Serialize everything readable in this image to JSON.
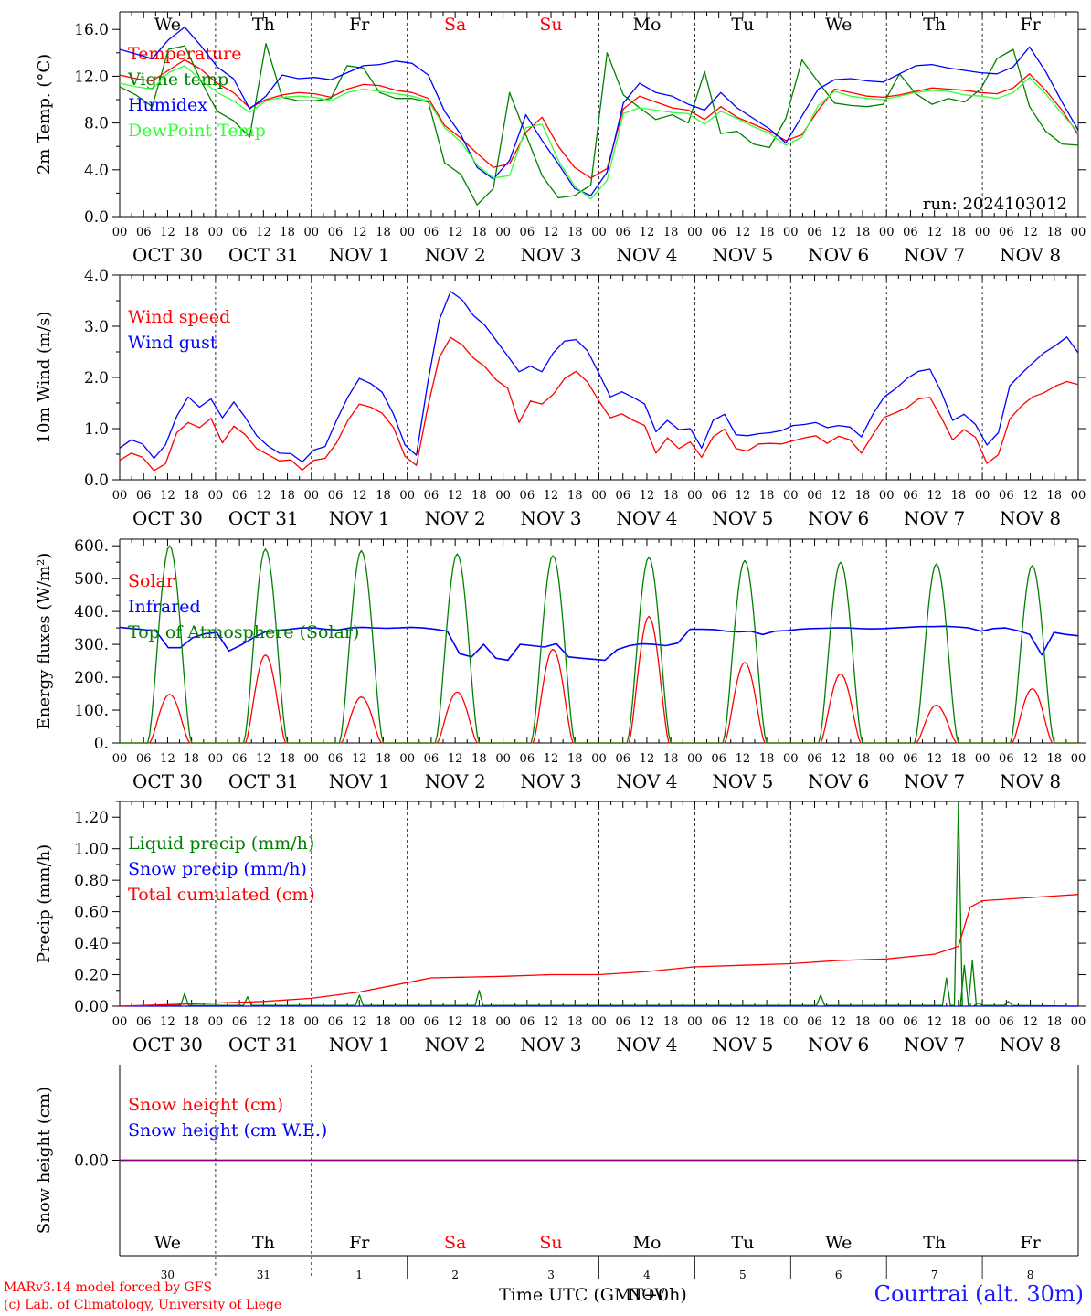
{
  "chart_data": {
    "type": "line",
    "run_label": "run: 2024103012",
    "weekday_labels": [
      {
        "text": "We",
        "color": "#000000"
      },
      {
        "text": "Th",
        "color": "#000000"
      },
      {
        "text": "Fr",
        "color": "#000000"
      },
      {
        "text": "Sa",
        "color": "#ff0000"
      },
      {
        "text": "Su",
        "color": "#ff0000"
      },
      {
        "text": "Mo",
        "color": "#000000"
      },
      {
        "text": "Tu",
        "color": "#000000"
      },
      {
        "text": "We",
        "color": "#000000"
      },
      {
        "text": "Th",
        "color": "#000000"
      },
      {
        "text": "Fr",
        "color": "#000000"
      }
    ],
    "hour_ticks": [
      "00",
      "06",
      "12",
      "18"
    ],
    "date_labels": [
      "OCT 30",
      "OCT 31",
      "NOV 1",
      "NOV 2",
      "NOV 3",
      "NOV 4",
      "NOV 5",
      "NOV 6",
      "NOV 7",
      "NOV 8"
    ],
    "bottom_day_numbers": [
      "30",
      "31",
      "1",
      "2",
      "3",
      "4",
      "5",
      "6",
      "7",
      "8"
    ],
    "bottom_month": "NOV",
    "time_axis_label": "Time UTC (GMT+0h)",
    "panels": [
      {
        "ylabel": "2m Temp. (°C)",
        "ylim": [
          0,
          17.5
        ],
        "yticks": [
          0,
          4,
          8,
          12,
          16
        ],
        "tick_labels": [
          "0.0",
          "4.0",
          "8.0",
          "12.0",
          "16.0"
        ],
        "series": [
          {
            "name": "Temperature",
            "color": "#ff0000",
            "values": [
              12.1,
              11.8,
              11.6,
              12.5,
              13.4,
              12.6,
              11.4,
              10.6,
              9.3,
              10.0,
              10.4,
              10.6,
              10.5,
              10.2,
              10.9,
              11.3,
              11.2,
              10.8,
              10.6,
              10.1,
              7.8,
              6.7,
              5.4,
              4.2,
              4.5,
              7.2,
              8.5,
              6.0,
              4.2,
              3.3,
              4.1,
              9.2,
              10.3,
              9.8,
              9.3,
              9.1,
              8.3,
              9.4,
              8.5,
              7.9,
              7.3,
              6.5,
              7.0,
              9.1,
              10.9,
              10.6,
              10.3,
              10.2,
              10.4,
              10.7,
              11.0,
              10.9,
              10.8,
              10.6,
              10.5,
              11.0,
              12.2,
              10.8,
              9.1,
              7.0
            ]
          },
          {
            "name": "Vigne temp",
            "color": "#008000",
            "values": [
              11.1,
              10.4,
              9.4,
              14.3,
              14.6,
              11.6,
              9.0,
              8.2,
              6.8,
              14.8,
              10.2,
              9.9,
              9.9,
              10.1,
              12.9,
              12.7,
              10.6,
              10.1,
              10.1,
              9.8,
              4.6,
              3.6,
              1.0,
              2.4,
              10.6,
              7.0,
              3.5,
              1.6,
              1.8,
              2.7,
              14.0,
              10.4,
              9.3,
              8.3,
              8.7,
              8.0,
              12.4,
              7.1,
              7.3,
              6.2,
              5.9,
              8.4,
              13.4,
              11.5,
              9.7,
              9.5,
              9.4,
              9.6,
              12.2,
              10.5,
              9.6,
              10.1,
              9.8,
              10.9,
              13.5,
              14.3,
              9.4,
              7.3,
              6.2,
              6.1
            ]
          },
          {
            "name": "Humidex",
            "color": "#0000ff",
            "values": [
              14.3,
              13.9,
              13.5,
              15.1,
              16.2,
              14.6,
              12.8,
              11.8,
              9.2,
              10.3,
              12.1,
              11.8,
              11.9,
              11.7,
              12.3,
              12.9,
              13.0,
              13.3,
              13.1,
              12.1,
              9.0,
              7.0,
              4.2,
              3.2,
              4.8,
              8.7,
              6.5,
              4.5,
              2.4,
              1.8,
              3.8,
              9.7,
              11.4,
              10.6,
              10.3,
              9.6,
              9.1,
              10.6,
              9.3,
              8.4,
              7.5,
              6.3,
              8.6,
              10.9,
              11.7,
              11.8,
              11.6,
              11.5,
              12.2,
              12.9,
              13.0,
              12.7,
              12.5,
              12.3,
              12.2,
              12.8,
              14.5,
              12.4,
              9.8,
              7.4
            ]
          },
          {
            "name": "DewPoint Temp",
            "color": "#33ff33",
            "values": [
              11.4,
              11.1,
              10.9,
              12.3,
              12.9,
              11.7,
              10.6,
              9.9,
              8.9,
              9.9,
              10.2,
              10.3,
              10.2,
              9.9,
              10.6,
              10.9,
              10.7,
              10.5,
              10.3,
              9.9,
              7.6,
              6.4,
              4.4,
              3.3,
              3.5,
              7.6,
              7.9,
              4.8,
              2.6,
              1.5,
              3.1,
              8.8,
              9.3,
              9.1,
              8.9,
              8.8,
              7.9,
              9.0,
              8.4,
              7.7,
              7.1,
              6.1,
              6.8,
              9.5,
              10.7,
              10.3,
              10.1,
              10.0,
              10.3,
              10.6,
              10.8,
              10.7,
              10.4,
              10.3,
              10.1,
              10.6,
              11.9,
              10.5,
              8.8,
              7.2
            ]
          }
        ]
      },
      {
        "ylabel": "10m Wind (m/s)",
        "ylim": [
          0,
          4
        ],
        "yticks": [
          0,
          1,
          2,
          3,
          4
        ],
        "tick_labels": [
          "0.0",
          "1.0",
          "2.0",
          "3.0",
          "4.0"
        ],
        "series": [
          {
            "name": "Wind speed",
            "color": "#ff0000",
            "values": [
              0.38,
              0.52,
              0.44,
              0.18,
              0.31,
              0.92,
              1.12,
              1.02,
              1.2,
              0.72,
              1.05,
              0.88,
              0.61,
              0.49,
              0.37,
              0.39,
              0.19,
              0.38,
              0.42,
              0.72,
              1.16,
              1.48,
              1.42,
              1.3,
              1.02,
              0.46,
              0.28,
              1.42,
              2.39,
              2.78,
              2.64,
              2.38,
              2.21,
              1.95,
              1.79,
              1.12,
              1.54,
              1.48,
              1.67,
              1.98,
              2.12,
              1.91,
              1.54,
              1.21,
              1.29,
              1.16,
              1.06,
              0.52,
              0.82,
              0.61,
              0.74,
              0.44,
              0.84,
              0.99,
              0.61,
              0.56,
              0.7,
              0.71,
              0.7,
              0.76,
              0.82,
              0.86,
              0.71,
              0.85,
              0.78,
              0.52,
              0.88,
              1.22,
              1.31,
              1.41,
              1.58,
              1.61,
              1.22,
              0.78,
              0.98,
              0.83,
              0.32,
              0.49,
              1.19,
              1.44,
              1.62,
              1.7,
              1.83,
              1.92,
              1.86
            ]
          },
          {
            "name": "Wind gust",
            "color": "#0000ff",
            "values": [
              0.62,
              0.78,
              0.7,
              0.42,
              0.68,
              1.24,
              1.62,
              1.42,
              1.58,
              1.21,
              1.52,
              1.22,
              0.86,
              0.66,
              0.52,
              0.51,
              0.35,
              0.58,
              0.65,
              1.16,
              1.62,
              1.98,
              1.88,
              1.71,
              1.28,
              0.68,
              0.48,
              1.9,
              3.12,
              3.68,
              3.52,
              3.21,
              3.02,
              2.72,
              2.42,
              2.11,
              2.22,
              2.11,
              2.48,
              2.71,
              2.74,
              2.52,
              2.08,
              1.62,
              1.72,
              1.61,
              1.48,
              0.94,
              1.16,
              0.98,
              1.0,
              0.62,
              1.16,
              1.28,
              0.88,
              0.86,
              0.9,
              0.92,
              0.96,
              1.06,
              1.08,
              1.12,
              1.02,
              1.06,
              1.03,
              0.84,
              1.28,
              1.62,
              1.78,
              1.98,
              2.12,
              2.16,
              1.72,
              1.16,
              1.28,
              1.08,
              0.68,
              0.92,
              1.84,
              2.07,
              2.28,
              2.48,
              2.62,
              2.79,
              2.48
            ]
          }
        ]
      },
      {
        "ylabel": "Energy fluxes (W/m²)",
        "ylim": [
          0,
          620
        ],
        "yticks": [
          0,
          100,
          200,
          300,
          400,
          500,
          600
        ],
        "tick_labels": [
          "0.",
          "100.",
          "200.",
          "300.",
          "400.",
          "500.",
          "600."
        ],
        "series": [
          {
            "name": "Solar",
            "color": "#ff0000",
            "diurnal_peaks": [
              148,
              268,
              140,
              155,
              285,
              385,
              245,
              210,
              115,
              165
            ]
          },
          {
            "name": "Infrared",
            "color": "#0000ff",
            "values": [
              352,
              348,
              345,
              340,
              290,
              290,
              320,
              332,
              336,
              280,
              298,
              320,
              338,
              342,
              346,
              350,
              350,
              346,
              344,
              350,
              352,
              350,
              349,
              350,
              352,
              350,
              346,
              340,
              272,
              262,
              300,
              258,
              252,
              300,
              296,
              292,
              302,
              262,
              258,
              255,
              252,
              284,
              296,
              302,
              300,
              296,
              304,
              346,
              346,
              345,
              340,
              338,
              340,
              330,
              340,
              342,
              346,
              348,
              349,
              350,
              350,
              348,
              347,
              348,
              350,
              352,
              354,
              354,
              355,
              353,
              350,
              340,
              348,
              350,
              342,
              330,
              268,
              336,
              330,
              326
            ]
          },
          {
            "name": "Top of Atmosphere (Solar)",
            "color": "#008000",
            "diurnal_peaks": [
              600,
              590,
              585,
              575,
              570,
              565,
              555,
              550,
              545,
              540
            ]
          }
        ]
      },
      {
        "ylabel": "Precip (mm/h)",
        "ylim": [
          0,
          1.3
        ],
        "yticks": [
          0,
          0.2,
          0.4,
          0.6,
          0.8,
          1.0,
          1.2
        ],
        "tick_labels": [
          "0.00",
          "0.20",
          "0.40",
          "0.60",
          "0.80",
          "1.00",
          "1.20"
        ],
        "series": [
          {
            "name": "Liquid precip (mm/h)",
            "color": "#008000",
            "spikes": [
              [
                6.5,
                0.08
              ],
              [
                12.8,
                0.06
              ],
              [
                24.0,
                0.07
              ],
              [
                36.0,
                0.1
              ],
              [
                70.2,
                0.07
              ],
              [
                86.0,
                0.02
              ],
              [
                82.8,
                0.18
              ],
              [
                84.0,
                1.28
              ],
              [
                85.4,
                0.29
              ],
              [
                84.6,
                0.26
              ],
              [
                89.0,
                0.03
              ]
            ]
          },
          {
            "name": "Snow precip (mm/h)",
            "color": "#0000ff",
            "values": [
              0,
              0
            ]
          },
          {
            "name": "Total cumulated (cm)",
            "color": "#ff0000",
            "points": [
              [
                0,
                0.0
              ],
              [
                12,
                0.01
              ],
              [
                24,
                0.02
              ],
              [
                36,
                0.03
              ],
              [
                48,
                0.05
              ],
              [
                60,
                0.09
              ],
              [
                72,
                0.15
              ],
              [
                78,
                0.18
              ],
              [
                96,
                0.19
              ],
              [
                108,
                0.2
              ],
              [
                120,
                0.2
              ],
              [
                132,
                0.22
              ],
              [
                144,
                0.25
              ],
              [
                156,
                0.26
              ],
              [
                168,
                0.27
              ],
              [
                180,
                0.29
              ],
              [
                192,
                0.3
              ],
              [
                204,
                0.33
              ],
              [
                210,
                0.38
              ],
              [
                213,
                0.63
              ],
              [
                216,
                0.67
              ],
              [
                228,
                0.69
              ],
              [
                240,
                0.71
              ]
            ]
          }
        ]
      },
      {
        "ylabel": "Snow height (cm)",
        "ylim": [
          -1,
          1
        ],
        "yticks": [
          0
        ],
        "tick_labels": [
          "0.00"
        ],
        "series": [
          {
            "name": "Snow height (cm)",
            "color": "#ff0000",
            "values": [
              0,
              0
            ]
          },
          {
            "name": "Snow height (cm W.E.)",
            "color": "#0000ff",
            "values": [
              0,
              0
            ]
          }
        ]
      }
    ]
  },
  "footer": {
    "model_credit": "MARv3.14 model forced by GFS",
    "lab_credit": "(c) Lab. of Climatology, University of Liege",
    "station": "Courtrai (alt. 30m)"
  }
}
